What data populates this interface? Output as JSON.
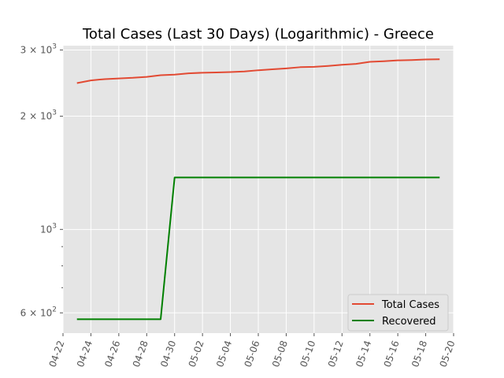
{
  "chart_data": {
    "type": "line",
    "title": "Total Cases (Last 30 Days) (Logarithmic) - Greece",
    "xlabel": "",
    "ylabel": "",
    "y_scale": "log",
    "ylim": [
      530,
      3080
    ],
    "grid": true,
    "legend_position": "lower-right",
    "x_ticks": [
      "04-22",
      "04-24",
      "04-26",
      "04-28",
      "04-30",
      "05-02",
      "05-04",
      "05-06",
      "05-08",
      "05-10",
      "05-12",
      "05-14",
      "05-16",
      "05-18",
      "05-20"
    ],
    "y_ticks": [
      {
        "value": 600,
        "label": "6 × 10",
        "exp": "2"
      },
      {
        "value": 1000,
        "label": "10",
        "exp": "3"
      },
      {
        "value": 2000,
        "label": "2 × 10",
        "exp": "3"
      },
      {
        "value": 3000,
        "label": "3 × 10",
        "exp": "3"
      }
    ],
    "x": [
      "04-23",
      "04-24",
      "04-25",
      "04-26",
      "04-27",
      "04-28",
      "04-29",
      "04-30",
      "05-01",
      "05-02",
      "05-03",
      "05-04",
      "05-05",
      "05-06",
      "05-07",
      "05-08",
      "05-09",
      "05-10",
      "05-11",
      "05-12",
      "05-13",
      "05-14",
      "05-15",
      "05-16",
      "05-17",
      "05-18",
      "05-19"
    ],
    "series": [
      {
        "name": "Total Cases",
        "color": "#e24a33",
        "values": [
          2450,
          2490,
          2510,
          2520,
          2530,
          2545,
          2570,
          2580,
          2600,
          2610,
          2615,
          2620,
          2630,
          2650,
          2665,
          2680,
          2700,
          2705,
          2720,
          2740,
          2755,
          2790,
          2800,
          2815,
          2820,
          2830,
          2835
        ]
      },
      {
        "name": "Recovered",
        "color": "#008000",
        "values": [
          577,
          577,
          577,
          577,
          577,
          577,
          577,
          1374,
          1374,
          1374,
          1374,
          1374,
          1374,
          1374,
          1374,
          1374,
          1374,
          1374,
          1374,
          1374,
          1374,
          1374,
          1374,
          1374,
          1374,
          1374,
          1374
        ]
      }
    ]
  }
}
